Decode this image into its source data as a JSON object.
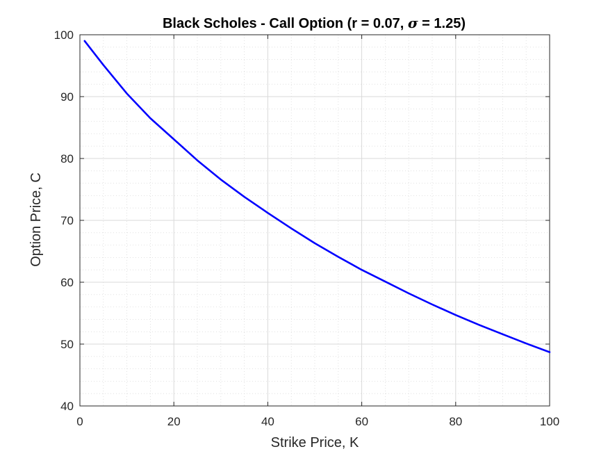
{
  "chart_data": {
    "type": "line",
    "title": {
      "prefix": "Black Scholes - Call Option (r = 0.07, ",
      "symbol": "σ",
      "suffix": " = 1.25)"
    },
    "xlabel": "Strike Price, K",
    "ylabel": "Option Price, C",
    "xlim": [
      0,
      100
    ],
    "ylim": [
      40,
      100
    ],
    "xticks": [
      0,
      20,
      40,
      60,
      80,
      100
    ],
    "yticks": [
      40,
      50,
      60,
      70,
      80,
      90,
      100
    ],
    "xtick_labels": [
      "0",
      "20",
      "40",
      "60",
      "80",
      "100"
    ],
    "ytick_labels": [
      "40",
      "50",
      "60",
      "70",
      "80",
      "90",
      "100"
    ],
    "grid": true,
    "minor_grid": true,
    "series": [
      {
        "color": "#0000ff",
        "x": [
          1,
          5,
          10,
          15,
          20,
          25,
          30,
          35,
          40,
          45,
          50,
          55,
          60,
          65,
          70,
          75,
          80,
          85,
          90,
          95,
          100
        ],
        "y": [
          99.0,
          95.1,
          90.5,
          86.5,
          83.1,
          79.7,
          76.6,
          73.8,
          71.2,
          68.7,
          66.3,
          64.1,
          62.0,
          60.1,
          58.2,
          56.4,
          54.7,
          53.1,
          51.6,
          50.1,
          48.7
        ]
      }
    ]
  },
  "colors": {
    "axis": "#262626",
    "grid": "#d9d9d9",
    "line": "#0000ff"
  }
}
